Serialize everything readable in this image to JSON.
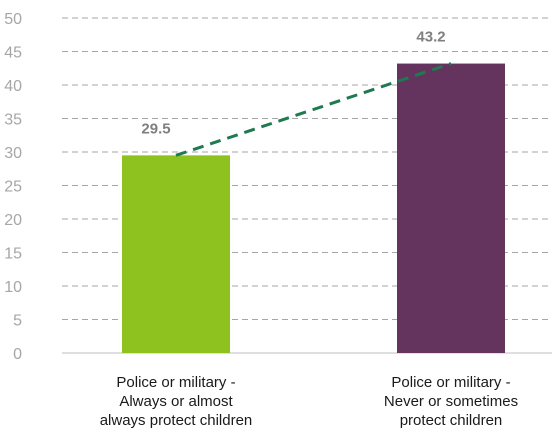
{
  "chart_data": {
    "type": "bar",
    "categories": [
      "Police or military -\nAlways or almost\nalways protect children",
      "Police or military -\nNever or sometimes\nprotect children"
    ],
    "values": [
      29.5,
      43.2
    ],
    "value_labels": [
      "29.5",
      "43.2"
    ],
    "colors": [
      "#8dc21f",
      "#65345e"
    ],
    "trendline_color": "#1e7a4f",
    "ylim": [
      0,
      50
    ],
    "yticks": [
      "0",
      "5",
      "10",
      "15",
      "20",
      "25",
      "30",
      "35",
      "40",
      "45",
      "50"
    ],
    "grid": true,
    "legend": "none"
  }
}
